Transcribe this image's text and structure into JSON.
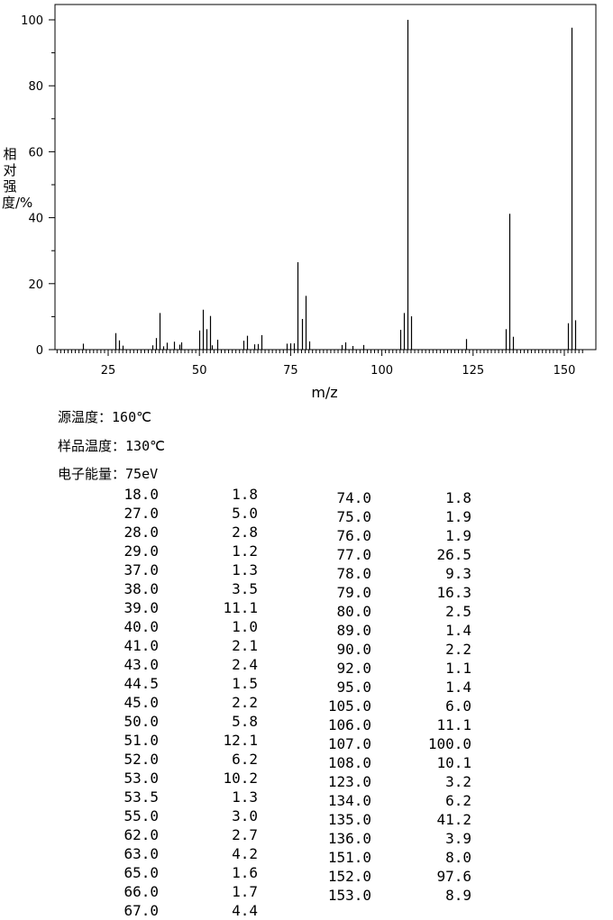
{
  "chart_data": {
    "type": "bar",
    "xlabel": "m/z",
    "ylabel": "相对强度/%",
    "xlim": [
      10,
      155
    ],
    "ylim": [
      0,
      100
    ],
    "xticks": [
      25,
      50,
      75,
      100,
      125,
      150
    ],
    "yticks": [
      0,
      20,
      40,
      60,
      80,
      100
    ],
    "grid": false,
    "peaks": [
      {
        "mz": 18.0,
        "intensity": 1.8
      },
      {
        "mz": 27.0,
        "intensity": 5.0
      },
      {
        "mz": 28.0,
        "intensity": 2.8
      },
      {
        "mz": 29.0,
        "intensity": 1.2
      },
      {
        "mz": 37.0,
        "intensity": 1.3
      },
      {
        "mz": 38.0,
        "intensity": 3.5
      },
      {
        "mz": 39.0,
        "intensity": 11.1
      },
      {
        "mz": 40.0,
        "intensity": 1.0
      },
      {
        "mz": 41.0,
        "intensity": 2.1
      },
      {
        "mz": 43.0,
        "intensity": 2.4
      },
      {
        "mz": 44.5,
        "intensity": 1.5
      },
      {
        "mz": 45.0,
        "intensity": 2.2
      },
      {
        "mz": 50.0,
        "intensity": 5.8
      },
      {
        "mz": 51.0,
        "intensity": 12.1
      },
      {
        "mz": 52.0,
        "intensity": 6.2
      },
      {
        "mz": 53.0,
        "intensity": 10.2
      },
      {
        "mz": 53.5,
        "intensity": 1.3
      },
      {
        "mz": 55.0,
        "intensity": 3.0
      },
      {
        "mz": 62.0,
        "intensity": 2.7
      },
      {
        "mz": 63.0,
        "intensity": 4.2
      },
      {
        "mz": 65.0,
        "intensity": 1.6
      },
      {
        "mz": 66.0,
        "intensity": 1.7
      },
      {
        "mz": 67.0,
        "intensity": 4.4
      },
      {
        "mz": 74.0,
        "intensity": 1.8
      },
      {
        "mz": 75.0,
        "intensity": 1.9
      },
      {
        "mz": 76.0,
        "intensity": 1.9
      },
      {
        "mz": 77.0,
        "intensity": 26.5
      },
      {
        "mz": 78.0,
        "intensity": 9.3
      },
      {
        "mz": 79.0,
        "intensity": 16.3
      },
      {
        "mz": 80.0,
        "intensity": 2.5
      },
      {
        "mz": 89.0,
        "intensity": 1.4
      },
      {
        "mz": 90.0,
        "intensity": 2.2
      },
      {
        "mz": 92.0,
        "intensity": 1.1
      },
      {
        "mz": 95.0,
        "intensity": 1.4
      },
      {
        "mz": 105.0,
        "intensity": 6.0
      },
      {
        "mz": 106.0,
        "intensity": 11.1
      },
      {
        "mz": 107.0,
        "intensity": 100.0
      },
      {
        "mz": 108.0,
        "intensity": 10.1
      },
      {
        "mz": 123.0,
        "intensity": 3.2
      },
      {
        "mz": 134.0,
        "intensity": 6.2
      },
      {
        "mz": 135.0,
        "intensity": 41.2
      },
      {
        "mz": 136.0,
        "intensity": 3.9
      },
      {
        "mz": 151.0,
        "intensity": 8.0
      },
      {
        "mz": 152.0,
        "intensity": 97.6
      },
      {
        "mz": 153.0,
        "intensity": 8.9
      }
    ]
  },
  "conditions": {
    "source_temp_label": "源温度：",
    "source_temp_value": "160℃",
    "sample_temp_label": "样品温度：",
    "sample_temp_value": "130℃",
    "electron_energy_label": "电子能量：",
    "electron_energy_value": "75eV"
  },
  "table": {
    "left": [
      [
        "18.0",
        "1.8"
      ],
      [
        "27.0",
        "5.0"
      ],
      [
        "28.0",
        "2.8"
      ],
      [
        "29.0",
        "1.2"
      ],
      [
        "37.0",
        "1.3"
      ],
      [
        "38.0",
        "3.5"
      ],
      [
        "39.0",
        "11.1"
      ],
      [
        "40.0",
        "1.0"
      ],
      [
        "41.0",
        "2.1"
      ],
      [
        "43.0",
        "2.4"
      ],
      [
        "44.5",
        "1.5"
      ],
      [
        "45.0",
        "2.2"
      ],
      [
        "50.0",
        "5.8"
      ],
      [
        "51.0",
        "12.1"
      ],
      [
        "52.0",
        "6.2"
      ],
      [
        "53.0",
        "10.2"
      ],
      [
        "53.5",
        "1.3"
      ],
      [
        "55.0",
        "3.0"
      ],
      [
        "62.0",
        "2.7"
      ],
      [
        "63.0",
        "4.2"
      ],
      [
        "65.0",
        "1.6"
      ],
      [
        "66.0",
        "1.7"
      ],
      [
        "67.0",
        "4.4"
      ]
    ],
    "right": [
      [
        "74.0",
        "1.8"
      ],
      [
        "75.0",
        "1.9"
      ],
      [
        "76.0",
        "1.9"
      ],
      [
        "77.0",
        "26.5"
      ],
      [
        "78.0",
        "9.3"
      ],
      [
        "79.0",
        "16.3"
      ],
      [
        "80.0",
        "2.5"
      ],
      [
        "89.0",
        "1.4"
      ],
      [
        "90.0",
        "2.2"
      ],
      [
        "92.0",
        "1.1"
      ],
      [
        "95.0",
        "1.4"
      ],
      [
        "105.0",
        "6.0"
      ],
      [
        "106.0",
        "11.1"
      ],
      [
        "107.0",
        "100.0"
      ],
      [
        "108.0",
        "10.1"
      ],
      [
        "123.0",
        "3.2"
      ],
      [
        "134.0",
        "6.2"
      ],
      [
        "135.0",
        "41.2"
      ],
      [
        "136.0",
        "3.9"
      ],
      [
        "151.0",
        "8.0"
      ],
      [
        "152.0",
        "97.6"
      ],
      [
        "153.0",
        "8.9"
      ]
    ]
  }
}
